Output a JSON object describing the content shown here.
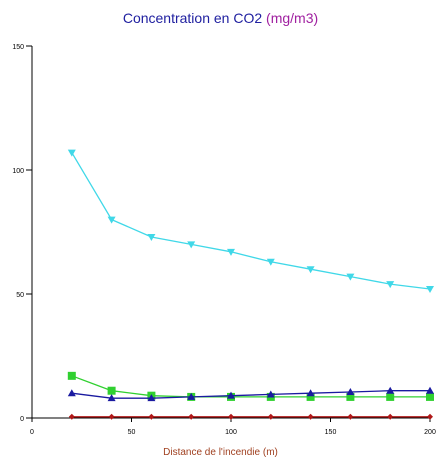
{
  "chart_data": {
    "type": "line",
    "title_a": "Concentration en CO2 ",
    "title_b": "(mg/m3)",
    "xlabel": "Distance de l'incendie (m)",
    "ylabel": "",
    "xlim": [
      0,
      200
    ],
    "ylim": [
      0,
      150
    ],
    "xticks": [
      0,
      50,
      100,
      150,
      200
    ],
    "yticks": [
      0,
      50,
      100,
      150
    ],
    "x": [
      20,
      40,
      60,
      80,
      100,
      120,
      140,
      160,
      180,
      200
    ],
    "series": [
      {
        "color": "#40d8e8",
        "marker": "triangle-down",
        "values": [
          107,
          80,
          73,
          70,
          67,
          63,
          60,
          57,
          54,
          52
        ]
      },
      {
        "color": "#30d030",
        "marker": "square",
        "values": [
          17,
          11,
          9,
          8.5,
          8.5,
          8.5,
          8.5,
          8.5,
          8.5,
          8.5
        ]
      },
      {
        "color": "#1a1aa0",
        "marker": "triangle-up",
        "values": [
          10,
          8,
          8,
          8.5,
          9,
          9.5,
          10,
          10.5,
          11,
          11
        ]
      },
      {
        "color": "#b01818",
        "marker": "diamond",
        "values": [
          0.5,
          0.5,
          0.5,
          0.5,
          0.5,
          0.5,
          0.5,
          0.5,
          0.5,
          0.5
        ]
      }
    ],
    "grid": false,
    "legend": "none"
  }
}
